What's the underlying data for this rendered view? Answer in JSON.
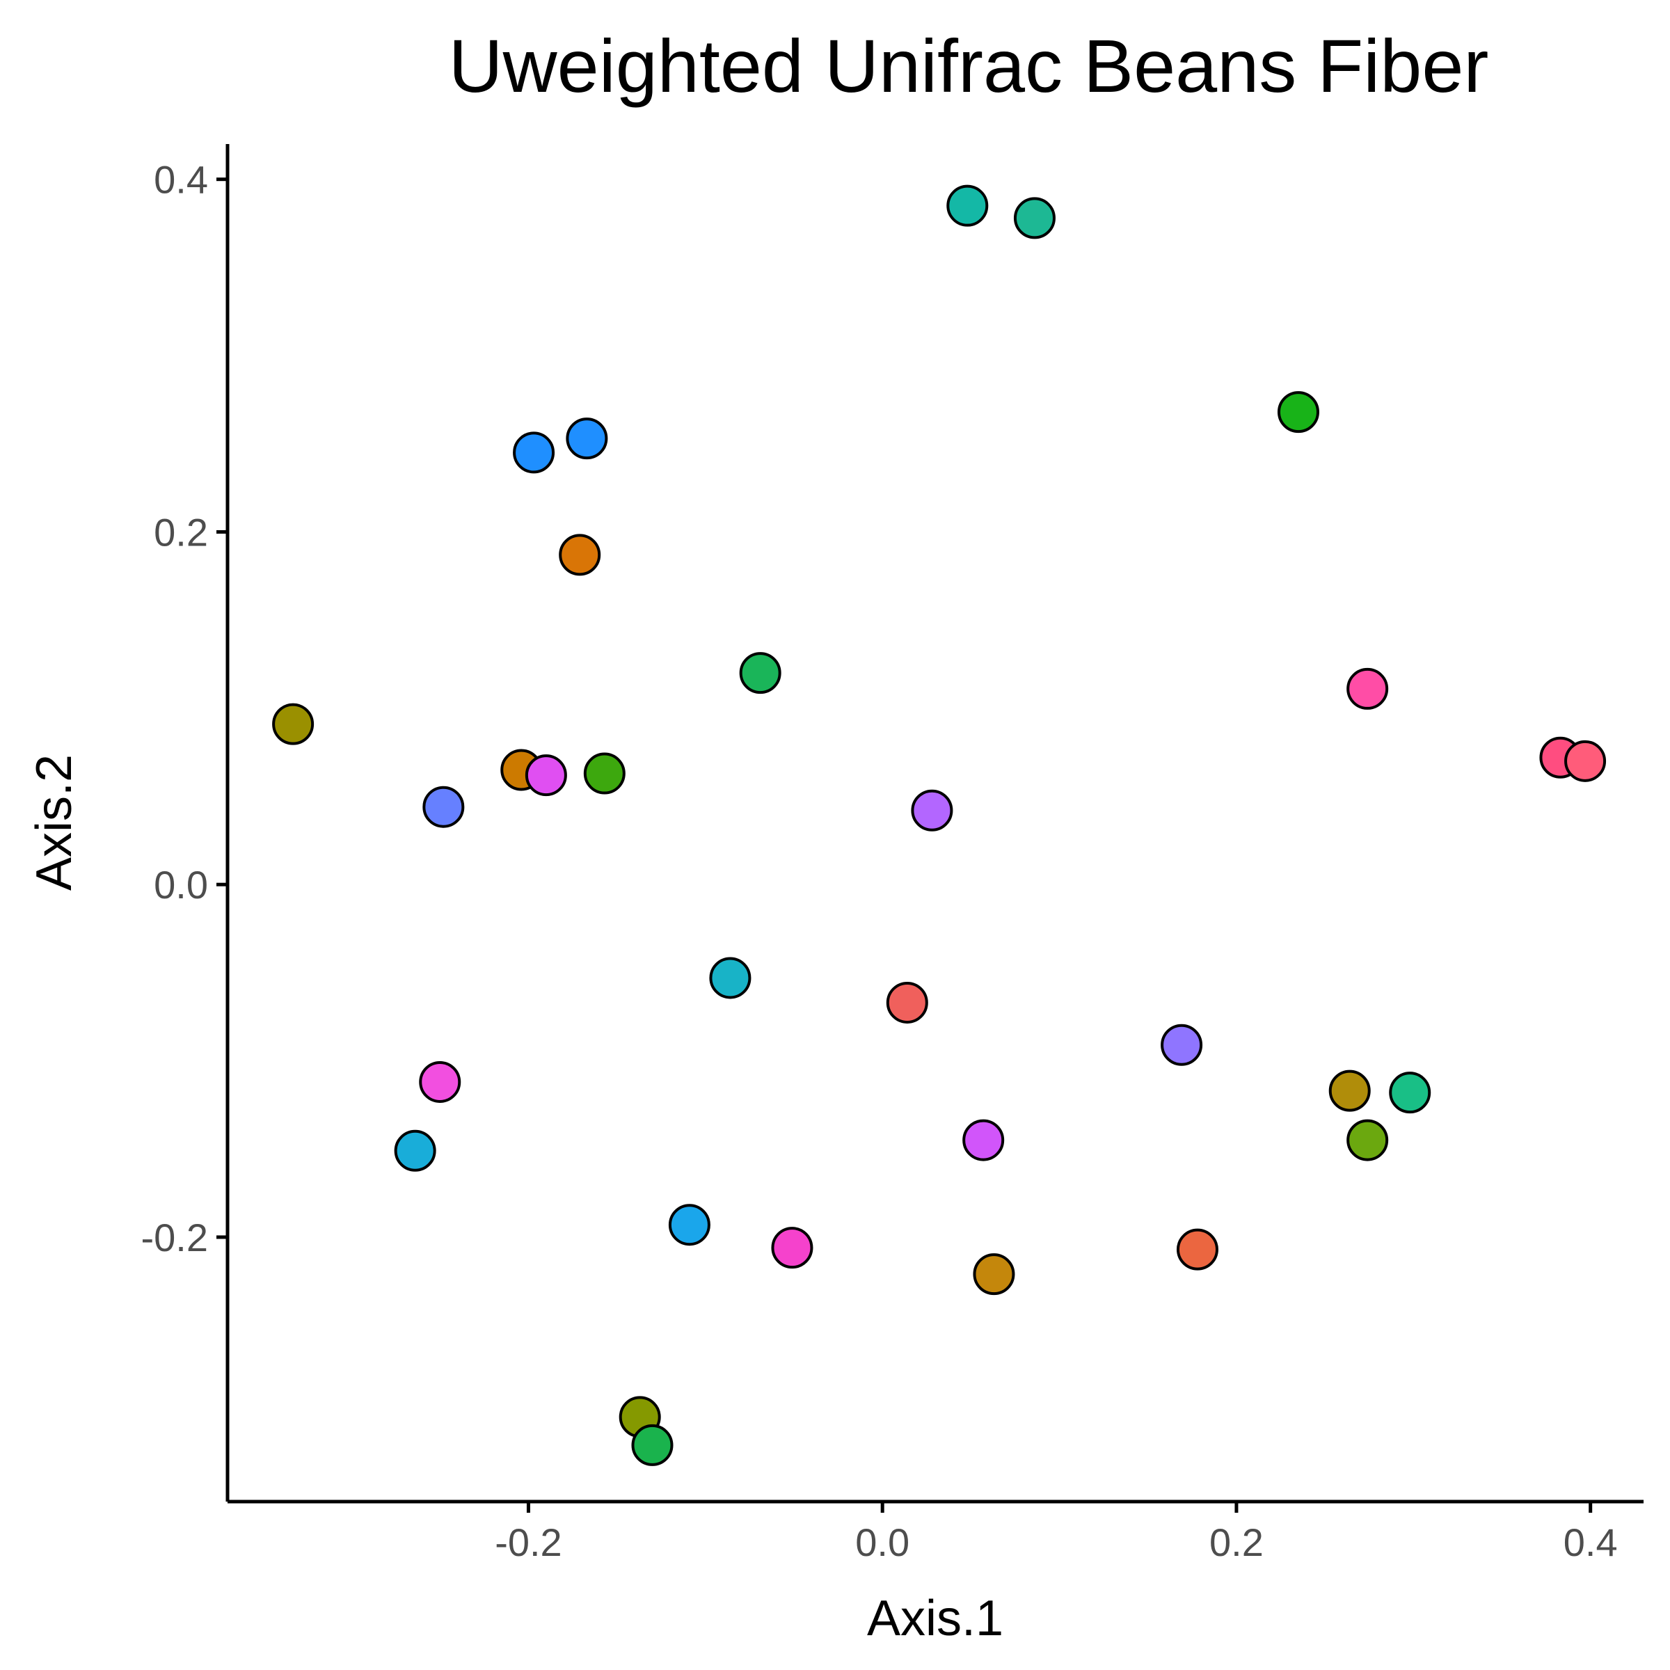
{
  "chart_data": {
    "type": "scatter",
    "title": "Uweighted Unifrac Beans Fiber",
    "xlabel": "Axis.1",
    "ylabel": "Axis.2",
    "xlim": [
      -0.37,
      0.43
    ],
    "ylim": [
      -0.35,
      0.42
    ],
    "x_ticks": [
      {
        "value": -0.2,
        "label": "-0.2"
      },
      {
        "value": 0.0,
        "label": "0.0"
      },
      {
        "value": 0.2,
        "label": "0.2"
      },
      {
        "value": 0.4,
        "label": "0.4"
      }
    ],
    "y_ticks": [
      {
        "value": -0.2,
        "label": "-0.2"
      },
      {
        "value": 0.0,
        "label": "0.0"
      },
      {
        "value": 0.2,
        "label": "0.2"
      },
      {
        "value": 0.4,
        "label": "0.4"
      }
    ],
    "grid": false,
    "legend": "none",
    "points": [
      {
        "x": 0.048,
        "y": 0.385,
        "color": "#14B8A6"
      },
      {
        "x": 0.086,
        "y": 0.378,
        "color": "#1DB894"
      },
      {
        "x": 0.235,
        "y": 0.268,
        "color": "#18B318"
      },
      {
        "x": -0.197,
        "y": 0.245,
        "color": "#1F8FFF"
      },
      {
        "x": -0.167,
        "y": 0.253,
        "color": "#1F8FFF"
      },
      {
        "x": -0.171,
        "y": 0.187,
        "color": "#D97506"
      },
      {
        "x": -0.069,
        "y": 0.12,
        "color": "#1AB559"
      },
      {
        "x": 0.274,
        "y": 0.111,
        "color": "#FF4DA6"
      },
      {
        "x": -0.333,
        "y": 0.091,
        "color": "#9A9000"
      },
      {
        "x": -0.204,
        "y": 0.065,
        "color": "#CC7A00"
      },
      {
        "x": -0.19,
        "y": 0.062,
        "color": "#E04FF2"
      },
      {
        "x": -0.157,
        "y": 0.063,
        "color": "#3DA80E"
      },
      {
        "x": -0.248,
        "y": 0.044,
        "color": "#6680FF"
      },
      {
        "x": 0.028,
        "y": 0.042,
        "color": "#B366FF"
      },
      {
        "x": 0.383,
        "y": 0.072,
        "color": "#FF4D80"
      },
      {
        "x": 0.397,
        "y": 0.07,
        "color": "#FF5C7A"
      },
      {
        "x": -0.086,
        "y": -0.053,
        "color": "#18B3C7"
      },
      {
        "x": 0.014,
        "y": -0.067,
        "color": "#F0605C"
      },
      {
        "x": 0.169,
        "y": -0.091,
        "color": "#8F75FF"
      },
      {
        "x": -0.25,
        "y": -0.112,
        "color": "#F24FE0"
      },
      {
        "x": 0.264,
        "y": -0.117,
        "color": "#B08D0A"
      },
      {
        "x": 0.298,
        "y": -0.118,
        "color": "#19BF86"
      },
      {
        "x": -0.264,
        "y": -0.151,
        "color": "#19ADD9"
      },
      {
        "x": 0.057,
        "y": -0.145,
        "color": "#D155FA"
      },
      {
        "x": 0.274,
        "y": -0.145,
        "color": "#6BA80F"
      },
      {
        "x": -0.109,
        "y": -0.193,
        "color": "#1AA6EB"
      },
      {
        "x": -0.051,
        "y": -0.206,
        "color": "#F542CC"
      },
      {
        "x": 0.063,
        "y": -0.221,
        "color": "#C4870C"
      },
      {
        "x": 0.178,
        "y": -0.207,
        "color": "#EB6640"
      },
      {
        "x": -0.137,
        "y": -0.302,
        "color": "#859900"
      },
      {
        "x": -0.13,
        "y": -0.318,
        "color": "#1AB34D"
      }
    ]
  }
}
